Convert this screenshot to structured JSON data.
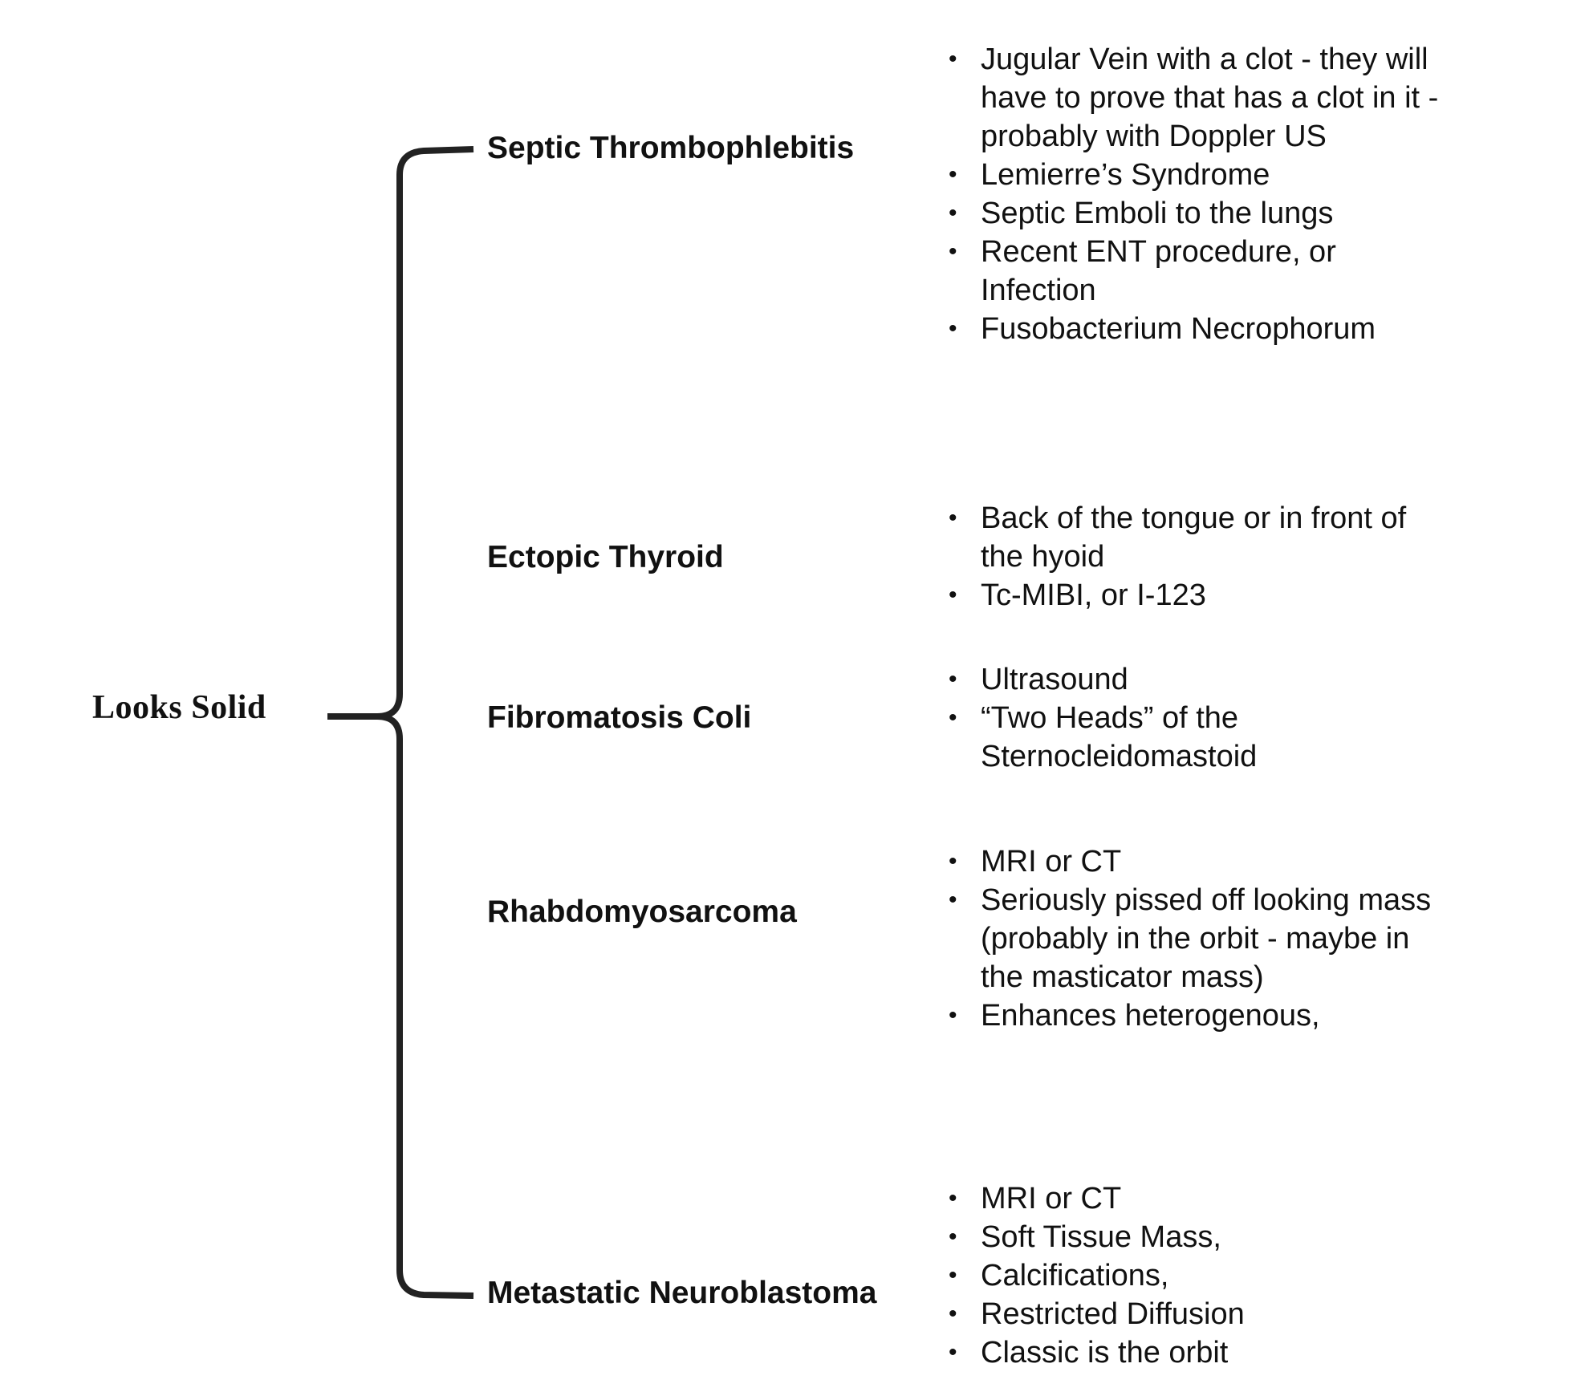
{
  "root": {
    "label": "Looks Solid"
  },
  "branches": [
    {
      "title": "Septic Thrombophlebitis",
      "bullets": [
        "Jugular Vein with a clot - they will have to prove that has a clot in it - probably with Doppler US",
        "Lemierre’s Syndrome",
        "Septic Emboli to the lungs",
        "Recent ENT procedure, or Infection",
        "Fusobacterium Necrophorum"
      ]
    },
    {
      "title": "Ectopic Thyroid",
      "bullets": [
        "Back of the tongue or in front of the hyoid",
        "Tc-MIBI, or I-123"
      ]
    },
    {
      "title": "Fibromatosis Coli",
      "bullets": [
        "Ultrasound",
        "“Two Heads” of the Sternocleidomastoid"
      ]
    },
    {
      "title": "Rhabdomyosarcoma",
      "bullets": [
        "MRI or CT",
        "Seriously pissed off looking mass (probably in the orbit - maybe in the masticator mass)",
        "Enhances heterogenous,"
      ]
    },
    {
      "title": "Metastatic Neuroblastoma",
      "bullets": [
        "MRI or CT",
        "Soft Tissue Mass,",
        "Calcifications,",
        "Restricted Diffusion",
        "Classic is the orbit"
      ]
    }
  ]
}
